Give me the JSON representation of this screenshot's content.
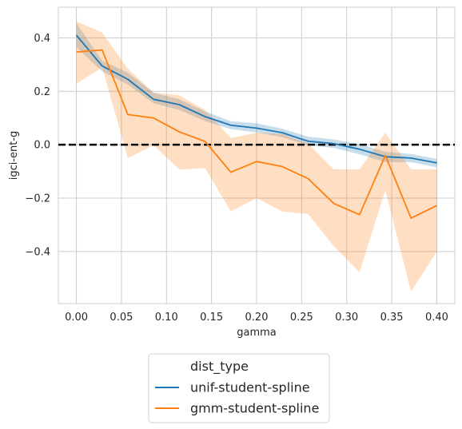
{
  "chart_data": {
    "type": "line",
    "xlabel": "gamma",
    "ylabel": "igci-ent-g",
    "xlim": [
      -0.02,
      0.42
    ],
    "ylim": [
      -0.595,
      0.515
    ],
    "xticks": [
      0.0,
      0.05,
      0.1,
      0.15,
      0.2,
      0.25,
      0.3,
      0.35,
      0.4
    ],
    "xtick_labels": [
      "0.00",
      "0.05",
      "0.10",
      "0.15",
      "0.20",
      "0.25",
      "0.30",
      "0.35",
      "0.40"
    ],
    "yticks": [
      -0.4,
      -0.2,
      0.0,
      0.2,
      0.4
    ],
    "ytick_labels": [
      "−0.4",
      "−0.2",
      "0.0",
      "0.2",
      "0.4"
    ],
    "grid": true,
    "reference_line": {
      "y": 0.0,
      "style": "dashed",
      "color": "#000000"
    },
    "legend": {
      "title": "dist_type",
      "placement": "bottom-center-outside"
    },
    "x": [
      0.0,
      0.0286,
      0.0571,
      0.0857,
      0.1143,
      0.1429,
      0.1714,
      0.2,
      0.2286,
      0.2571,
      0.2857,
      0.3143,
      0.3429,
      0.3714,
      0.4
    ],
    "series": [
      {
        "name": "unif-student-spline",
        "color": "#1f77b4",
        "values": [
          0.41,
          0.295,
          0.245,
          0.17,
          0.15,
          0.105,
          0.073,
          0.062,
          0.045,
          0.013,
          0.004,
          -0.017,
          -0.045,
          -0.05,
          -0.068
        ],
        "ci_lower": [
          0.365,
          0.275,
          0.225,
          0.155,
          0.13,
          0.088,
          0.058,
          0.046,
          0.028,
          -0.002,
          -0.012,
          -0.036,
          -0.065,
          -0.065,
          -0.085
        ],
        "ci_upper": [
          0.455,
          0.315,
          0.27,
          0.195,
          0.17,
          0.125,
          0.088,
          0.08,
          0.06,
          0.03,
          0.02,
          0.002,
          -0.026,
          -0.035,
          -0.053
        ]
      },
      {
        "name": "gmm-student-spline",
        "color": "#ff7f0e",
        "values": [
          0.347,
          0.355,
          0.113,
          0.1,
          0.048,
          0.012,
          -0.103,
          -0.063,
          -0.082,
          -0.127,
          -0.22,
          -0.262,
          -0.04,
          -0.275,
          -0.228
        ],
        "ci_lower": [
          0.228,
          0.29,
          -0.05,
          -0.002,
          -0.093,
          -0.088,
          -0.25,
          -0.2,
          -0.25,
          -0.26,
          -0.38,
          -0.478,
          -0.17,
          -0.55,
          -0.4
        ],
        "ci_upper": [
          0.462,
          0.42,
          0.285,
          0.195,
          0.185,
          0.13,
          0.025,
          0.045,
          0.04,
          0.005,
          -0.092,
          -0.092,
          0.045,
          -0.092,
          -0.092
        ]
      }
    ]
  }
}
